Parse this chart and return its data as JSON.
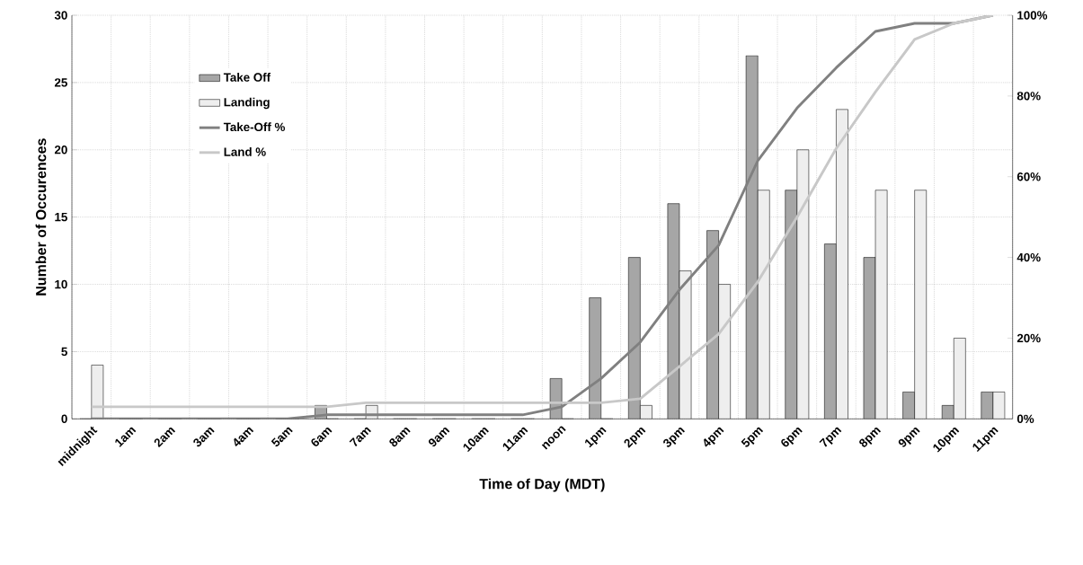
{
  "chart_data": {
    "type": "bar",
    "xlabel": "Time of Day (MDT)",
    "ylabel": "Number of Occurences",
    "categories": [
      "midnight",
      "1am",
      "2am",
      "3am",
      "4am",
      "5am",
      "6am",
      "7am",
      "8am",
      "9am",
      "10am",
      "11am",
      "noon",
      "1pm",
      "2pm",
      "3pm",
      "4pm",
      "5pm",
      "6pm",
      "7pm",
      "8pm",
      "9pm",
      "10pm",
      "11pm"
    ],
    "series": [
      {
        "name": "Take Off",
        "color": "#a6a6a6",
        "values": [
          0,
          0,
          0,
          0,
          0,
          0,
          1,
          0,
          0,
          0,
          0,
          0,
          3,
          9,
          12,
          16,
          14,
          27,
          17,
          13,
          12,
          2,
          1,
          2
        ]
      },
      {
        "name": "Landing",
        "color": "#eeeeee",
        "values": [
          4,
          0,
          0,
          0,
          0,
          0,
          0,
          1,
          0,
          0,
          0,
          0,
          0,
          0,
          1,
          11,
          10,
          17,
          20,
          23,
          17,
          17,
          6,
          2
        ]
      },
      {
        "name": "Take-Off %",
        "type": "line",
        "axis": "y2",
        "color": "#808080",
        "values": [
          0,
          0,
          0,
          0,
          0,
          0,
          1,
          1,
          1,
          1,
          1,
          1,
          3,
          10,
          19,
          32,
          43,
          64,
          77,
          87,
          96,
          98,
          98,
          100
        ]
      },
      {
        "name": "Land %",
        "type": "line",
        "axis": "y2",
        "color": "#c8c8c8",
        "values": [
          3,
          3,
          3,
          3,
          3,
          3,
          3,
          4,
          4,
          4,
          4,
          4,
          4,
          4,
          5,
          13,
          21,
          34,
          50,
          67,
          81,
          94,
          98,
          100
        ]
      }
    ],
    "ylim": [
      0,
      30
    ],
    "yticks": [
      0,
      5,
      10,
      15,
      20,
      25,
      30
    ],
    "y2lim": [
      0,
      100
    ],
    "y2ticks": [
      {
        "value": 0,
        "label": "0%"
      },
      {
        "value": 20,
        "label": "20%"
      },
      {
        "value": 40,
        "label": "40%"
      },
      {
        "value": 60,
        "label": "60%"
      },
      {
        "value": 80,
        "label": "80%"
      },
      {
        "value": 100,
        "label": "100%"
      }
    ],
    "grid": true,
    "legend": "top left"
  }
}
